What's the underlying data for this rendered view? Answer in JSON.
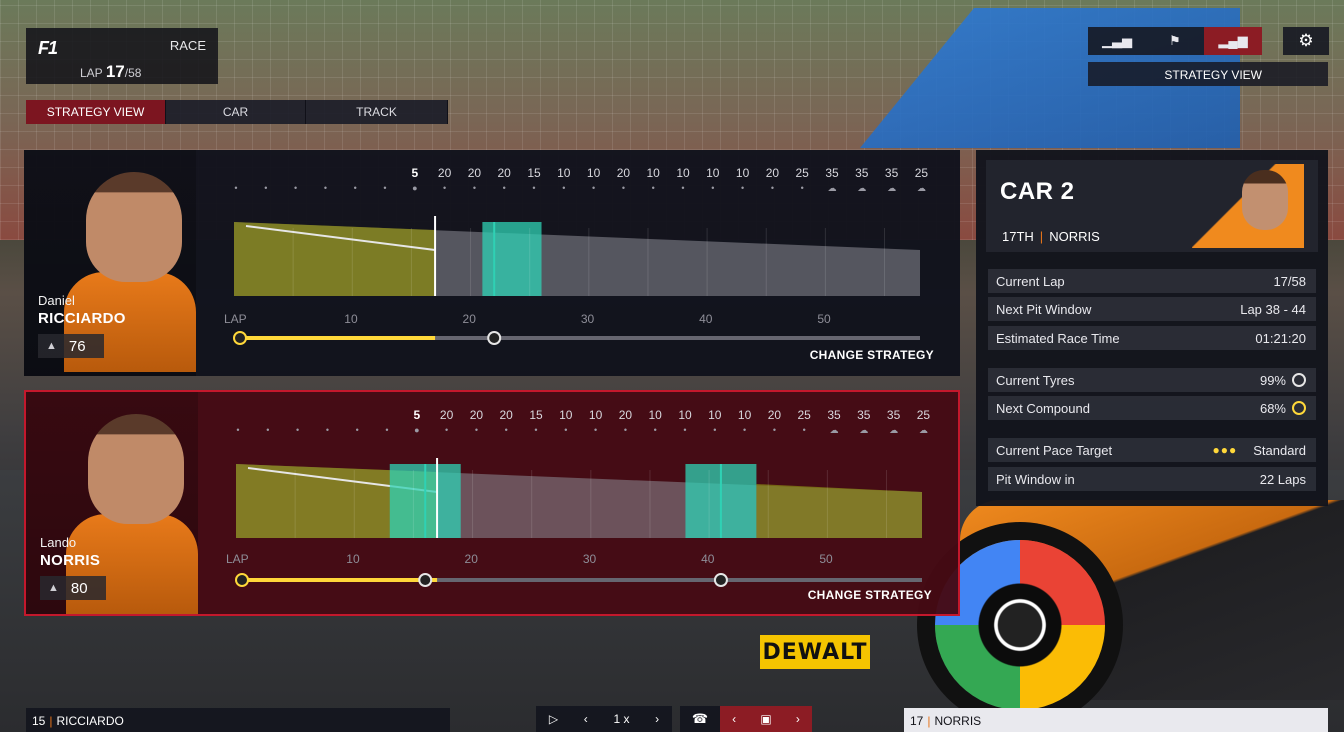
{
  "header": {
    "logo": "F1",
    "session": "RACE",
    "lap_label": "LAP",
    "lap_current": "17",
    "lap_total": "/58"
  },
  "tabs": [
    {
      "label": "STRATEGY VIEW",
      "active": true
    },
    {
      "label": "CAR",
      "active": false
    },
    {
      "label": "TRACK",
      "active": false
    }
  ],
  "top_right": {
    "view_label": "STRATEGY VIEW",
    "buttons": [
      {
        "icon": "bar-chart-icon",
        "glyph": "▁▃▅",
        "active": false
      },
      {
        "icon": "flag-icon",
        "glyph": "⚑",
        "active": false
      },
      {
        "icon": "strategy-chart-icon",
        "glyph": "▂▄▆",
        "active": true
      }
    ],
    "settings_icon": "⚙"
  },
  "weather_temps": [
    "",
    "",
    "",
    "",
    "",
    "",
    "5",
    "20",
    "20",
    "20",
    "15",
    "10",
    "10",
    "20",
    "10",
    "10",
    "10",
    "10",
    "20",
    "25",
    "35",
    "35",
    "35",
    "25"
  ],
  "weather_current_index": 6,
  "drivers": [
    {
      "first_name": "Daniel",
      "last_name": "RICCIARDO",
      "rating": "76",
      "lap_axis": {
        "label": "LAP",
        "ticks": [
          "10",
          "20",
          "30",
          "40",
          "50"
        ]
      },
      "change_strategy": "CHANGE STRATEGY",
      "pit_laps": [
        22
      ],
      "window_start": 21,
      "window_end": 26
    },
    {
      "first_name": "Lando",
      "last_name": "NORRIS",
      "rating": "80",
      "lap_axis": {
        "label": "LAP",
        "ticks": [
          "10",
          "20",
          "30",
          "40",
          "50"
        ]
      },
      "change_strategy": "CHANGE STRATEGY",
      "pit_laps": [
        16,
        41
      ],
      "window_start": 13,
      "window_end": 19,
      "window2_start": 38,
      "window2_end": 44
    }
  ],
  "car_info": {
    "title": "CAR 2",
    "position": "17TH",
    "driver": "NORRIS",
    "rows": [
      {
        "label": "Current Lap",
        "value": "17/58"
      },
      {
        "label": "Next Pit Window",
        "value": "Lap 38 - 44"
      },
      {
        "label": "Estimated Race Time",
        "value": "01:21:20"
      },
      {
        "label": "Current Tyres",
        "value": "99%",
        "tyre": "hard"
      },
      {
        "label": "Next Compound",
        "value": "68%",
        "tyre": "medium"
      },
      {
        "label": "Current Pace Target",
        "value": "Standard",
        "dots": "●●●"
      },
      {
        "label": "Pit Window in",
        "value": "22 Laps"
      }
    ]
  },
  "bottom": {
    "left_pos": "15",
    "left_name": "RICCIARDO",
    "right_pos": "17",
    "right_name": "NORRIS",
    "speed": "1 x"
  },
  "colors": {
    "accent_red": "#c4182c",
    "hard_tyre": "#e6e6e6",
    "medium_tyre": "#ffd83a",
    "stint_olive": "#8a8a12",
    "pit_window": "#2fd1b4",
    "future_gray": "#8c8c96"
  }
}
